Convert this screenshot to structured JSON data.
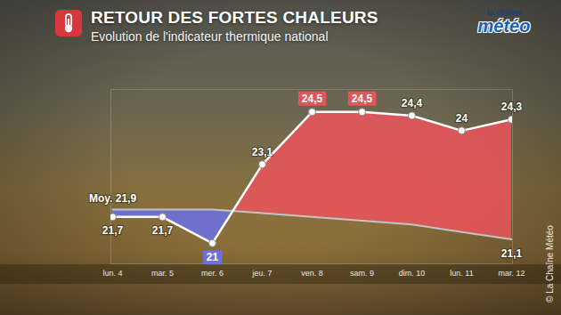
{
  "chart_data": {
    "type": "line",
    "title": "RETOUR DES FORTES CHALEURS",
    "subtitle": "Evolution de l'indicateur thermique national",
    "logo": [
      "la chaîne",
      "météo"
    ],
    "credit": "© La Chaîne Météo",
    "categories": [
      "lun. 4",
      "mar. 5",
      "mer. 6",
      "jeu. 7",
      "ven. 8",
      "sam. 9",
      "dim. 10",
      "lun. 11",
      "mar. 12"
    ],
    "series": [
      {
        "color": "#ffffff",
        "values": [
          21.7,
          21.7,
          21,
          23.1,
          24.5,
          24.5,
          24.4,
          24,
          24.3
        ],
        "value_labels": [
          "21,7",
          "21,7",
          "21",
          "23,1",
          "24,5",
          "24,5",
          "24,4",
          "24",
          "24,3"
        ]
      },
      {
        "color": "#c4c4c4",
        "values": [
          21.9,
          21.9,
          21.9,
          21.8,
          21.7,
          21.6,
          21.5,
          21.3,
          21.1
        ],
        "value_labels": [
          "Moy. 21,9",
          null,
          null,
          null,
          null,
          null,
          null,
          null,
          "21,1"
        ]
      }
    ],
    "ylim": [
      20.45,
      25.1
    ],
    "yticks": [],
    "tick_labels": "x",
    "grid": false,
    "data_labels": true
  }
}
